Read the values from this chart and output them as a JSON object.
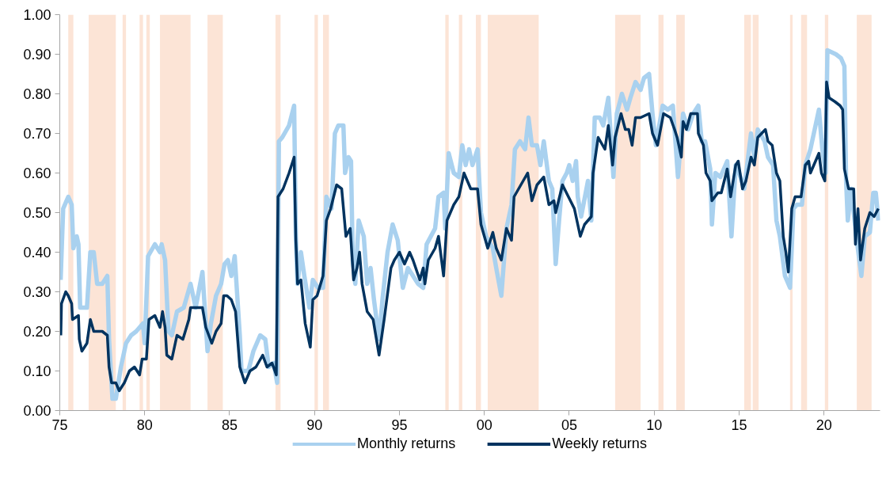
{
  "chart_data": {
    "type": "line",
    "xlim": [
      1975,
      2023.3
    ],
    "ylim": [
      0,
      1
    ],
    "xticks": [
      {
        "value": 1975,
        "label": "75"
      },
      {
        "value": 1980,
        "label": "80"
      },
      {
        "value": 1985,
        "label": "85"
      },
      {
        "value": 1990,
        "label": "90"
      },
      {
        "value": 1995,
        "label": "95"
      },
      {
        "value": 2000,
        "label": "00"
      },
      {
        "value": 2005,
        "label": "05"
      },
      {
        "value": 2010,
        "label": "10"
      },
      {
        "value": 2015,
        "label": "15"
      },
      {
        "value": 2020,
        "label": "20"
      }
    ],
    "yticks": [
      {
        "value": 0,
        "label": "0.00"
      },
      {
        "value": 0.1,
        "label": "0.10"
      },
      {
        "value": 0.2,
        "label": "0.20"
      },
      {
        "value": 0.3,
        "label": "0.30"
      },
      {
        "value": 0.4,
        "label": "0.40"
      },
      {
        "value": 0.5,
        "label": "0.50"
      },
      {
        "value": 0.6,
        "label": "0.60"
      },
      {
        "value": 0.7,
        "label": "0.70"
      },
      {
        "value": 0.8,
        "label": "0.80"
      },
      {
        "value": 0.9,
        "label": "0.90"
      },
      {
        "value": 1,
        "label": "1.00"
      }
    ],
    "grid": false,
    "legend": "bottom",
    "line_style": "solid",
    "marker": "none",
    "series": [
      {
        "name": "Monthly returns",
        "color": "#a9d1ef",
        "x": [
          1975.05,
          1975.2,
          1975.5,
          1975.7,
          1975.8,
          1976.0,
          1976.1,
          1976.2,
          1976.6,
          1976.8,
          1977.0,
          1977.2,
          1977.5,
          1977.8,
          1977.9,
          1978.1,
          1978.3,
          1978.6,
          1978.9,
          1979.2,
          1979.5,
          1979.9,
          1980.0,
          1980.2,
          1980.6,
          1980.9,
          1981.0,
          1981.2,
          1981.4,
          1981.6,
          1981.9,
          1982.3,
          1982.7,
          1983.0,
          1983.4,
          1983.7,
          1983.9,
          1984.2,
          1984.5,
          1984.7,
          1984.9,
          1985.1,
          1985.3,
          1985.6,
          1985.7,
          1986.1,
          1986.4,
          1986.8,
          1987.1,
          1987.3,
          1987.6,
          1987.8,
          1987.9,
          1988.1,
          1988.5,
          1988.8,
          1988.9,
          1989.0,
          1989.2,
          1989.4,
          1989.7,
          1989.9,
          1990.2,
          1990.5,
          1990.7,
          1991.0,
          1991.2,
          1991.4,
          1991.7,
          1991.8,
          1992.0,
          1992.15,
          1992.25,
          1992.4,
          1992.6,
          1992.9,
          1993.1,
          1993.3,
          1993.5,
          1993.8,
          1994.0,
          1994.3,
          1994.6,
          1994.9,
          1995.2,
          1995.5,
          1995.8,
          1996.1,
          1996.4,
          1996.6,
          1997.1,
          1997.3,
          1997.6,
          1997.7,
          1997.9,
          1998.2,
          1998.5,
          1998.7,
          1998.9,
          1999.1,
          1999.3,
          1999.6,
          1999.8,
          2000.1,
          2000.5,
          2000.7,
          2001.0,
          2001.3,
          2001.6,
          2001.8,
          2002.1,
          2002.4,
          2002.6,
          2002.8,
          2003.1,
          2003.3,
          2003.5,
          2003.8,
          2004.0,
          2004.2,
          2004.4,
          2004.6,
          2004.85,
          2005.0,
          2005.2,
          2005.4,
          2005.5,
          2005.7,
          2006.1,
          2006.3,
          2006.5,
          2006.8,
          2007.0,
          2007.3,
          2007.6,
          2007.8,
          2008.1,
          2008.4,
          2008.6,
          2008.9,
          2009.2,
          2009.4,
          2009.7,
          2009.9,
          2010.1,
          2010.5,
          2010.8,
          2011.1,
          2011.4,
          2011.7,
          2012.0,
          2012.3,
          2012.6,
          2012.8,
          2013.0,
          2013.3,
          2013.4,
          2013.6,
          2013.9,
          2014.3,
          2014.55,
          2014.8,
          2015.0,
          2015.3,
          2015.7,
          2015.9,
          2016.1,
          2016.5,
          2016.7,
          2017.0,
          2017.2,
          2017.4,
          2017.7,
          2018.0,
          2018.2,
          2018.4,
          2018.7,
          2018.9,
          2019.2,
          2019.5,
          2019.7,
          2019.9,
          2020.1,
          2020.2,
          2020.7,
          2021.0,
          2021.2,
          2021.3,
          2021.4,
          2021.6,
          2021.9,
          2022.2,
          2022.4,
          2022.7,
          2022.9,
          2023.05,
          2023.2
        ],
        "values": [
          0.33,
          0.51,
          0.54,
          0.52,
          0.41,
          0.44,
          0.42,
          0.26,
          0.26,
          0.4,
          0.4,
          0.32,
          0.32,
          0.34,
          0.18,
          0.03,
          0.03,
          0.11,
          0.17,
          0.19,
          0.2,
          0.22,
          0.17,
          0.39,
          0.42,
          0.4,
          0.42,
          0.38,
          0.2,
          0.19,
          0.25,
          0.26,
          0.32,
          0.26,
          0.35,
          0.15,
          0.22,
          0.29,
          0.32,
          0.37,
          0.38,
          0.34,
          0.39,
          0.19,
          0.1,
          0.1,
          0.15,
          0.19,
          0.18,
          0.11,
          0.12,
          0.07,
          0.68,
          0.69,
          0.72,
          0.77,
          0.44,
          0.32,
          0.4,
          0.34,
          0.26,
          0.33,
          0.31,
          0.31,
          0.54,
          0.51,
          0.7,
          0.72,
          0.72,
          0.6,
          0.64,
          0.63,
          0.38,
          0.32,
          0.48,
          0.44,
          0.32,
          0.36,
          0.28,
          0.18,
          0.28,
          0.4,
          0.47,
          0.43,
          0.31,
          0.36,
          0.34,
          0.32,
          0.31,
          0.42,
          0.46,
          0.54,
          0.55,
          0.46,
          0.65,
          0.6,
          0.59,
          0.67,
          0.62,
          0.66,
          0.62,
          0.66,
          0.5,
          0.44,
          0.41,
          0.36,
          0.29,
          0.46,
          0.52,
          0.66,
          0.68,
          0.66,
          0.74,
          0.67,
          0.67,
          0.62,
          0.68,
          0.58,
          0.56,
          0.37,
          0.48,
          0.58,
          0.6,
          0.62,
          0.58,
          0.63,
          0.54,
          0.49,
          0.58,
          0.48,
          0.74,
          0.74,
          0.72,
          0.79,
          0.59,
          0.75,
          0.8,
          0.76,
          0.79,
          0.83,
          0.81,
          0.84,
          0.85,
          0.75,
          0.67,
          0.77,
          0.76,
          0.77,
          0.59,
          0.75,
          0.71,
          0.75,
          0.77,
          0.68,
          0.68,
          0.61,
          0.47,
          0.6,
          0.59,
          0.63,
          0.44,
          0.62,
          0.6,
          0.56,
          0.7,
          0.64,
          0.71,
          0.68,
          0.64,
          0.62,
          0.48,
          0.44,
          0.34,
          0.31,
          0.51,
          0.52,
          0.52,
          0.62,
          0.66,
          0.72,
          0.76,
          0.66,
          0.6,
          0.91,
          0.9,
          0.89,
          0.87,
          0.58,
          0.48,
          0.56,
          0.44,
          0.34,
          0.44,
          0.45,
          0.55,
          0.55,
          0.48
        ]
      },
      {
        "name": "Weekly returns",
        "color": "#00335f",
        "x": [
          1975.06,
          1975.1,
          1975.35,
          1975.5,
          1975.7,
          1975.75,
          1976.1,
          1976.15,
          1976.3,
          1976.6,
          1976.8,
          1977.0,
          1977.5,
          1977.8,
          1977.9,
          1978.05,
          1978.3,
          1978.5,
          1978.8,
          1979.1,
          1979.4,
          1979.7,
          1979.85,
          1980.1,
          1980.25,
          1980.6,
          1980.9,
          1981.05,
          1981.2,
          1981.3,
          1981.6,
          1981.9,
          1982.25,
          1982.6,
          1982.7,
          1983.05,
          1983.4,
          1983.6,
          1983.95,
          1984.2,
          1984.5,
          1984.65,
          1984.85,
          1985.1,
          1985.35,
          1985.6,
          1985.9,
          1986.2,
          1986.55,
          1986.95,
          1987.2,
          1987.5,
          1987.75,
          1987.85,
          1988.15,
          1988.5,
          1988.8,
          1988.9,
          1989.0,
          1989.2,
          1989.45,
          1989.75,
          1989.9,
          1990.15,
          1990.5,
          1990.7,
          1990.95,
          1991.3,
          1991.6,
          1991.85,
          1992.1,
          1992.3,
          1992.5,
          1992.65,
          1992.8,
          1993.1,
          1993.45,
          1993.8,
          1994.1,
          1994.5,
          1994.7,
          1995.0,
          1995.3,
          1995.6,
          1995.8,
          1996.2,
          1996.4,
          1996.5,
          1996.7,
          1997.1,
          1997.3,
          1997.6,
          1997.8,
          1998.2,
          1998.5,
          1998.8,
          1999.2,
          1999.6,
          1999.8,
          2000.2,
          2000.5,
          2000.7,
          2001.0,
          2001.3,
          2001.6,
          2001.75,
          2002.15,
          2002.55,
          2002.8,
          2003.1,
          2003.5,
          2003.8,
          2004.1,
          2004.2,
          2004.6,
          2004.95,
          2005.3,
          2005.65,
          2005.9,
          2006.3,
          2006.4,
          2006.7,
          2007.1,
          2007.3,
          2007.55,
          2007.7,
          2008.05,
          2008.3,
          2008.5,
          2008.7,
          2008.9,
          2009.2,
          2009.7,
          2009.9,
          2010.2,
          2010.55,
          2010.95,
          2011.2,
          2011.35,
          2011.6,
          2011.7,
          2011.9,
          2012.15,
          2012.55,
          2012.6,
          2012.9,
          2013.05,
          2013.3,
          2013.4,
          2013.75,
          2013.95,
          2014.3,
          2014.5,
          2014.8,
          2014.95,
          2015.2,
          2015.4,
          2015.7,
          2015.9,
          2016.1,
          2016.55,
          2016.7,
          2016.95,
          2017.2,
          2017.4,
          2017.6,
          2017.75,
          2017.9,
          2018.1,
          2018.3,
          2018.65,
          2018.9,
          2019.1,
          2019.2,
          2019.7,
          2019.85,
          2020.05,
          2020.15,
          2020.3,
          2020.65,
          2020.95,
          2021.1,
          2021.2,
          2021.45,
          2021.75,
          2021.85,
          2022.0,
          2022.15,
          2022.4,
          2022.7,
          2022.95,
          2023.2
        ],
        "values": [
          0.19,
          0.27,
          0.3,
          0.29,
          0.27,
          0.23,
          0.24,
          0.18,
          0.15,
          0.17,
          0.23,
          0.2,
          0.2,
          0.19,
          0.11,
          0.07,
          0.07,
          0.05,
          0.07,
          0.1,
          0.11,
          0.09,
          0.13,
          0.13,
          0.23,
          0.24,
          0.21,
          0.25,
          0.21,
          0.14,
          0.13,
          0.19,
          0.18,
          0.23,
          0.26,
          0.26,
          0.26,
          0.21,
          0.17,
          0.2,
          0.22,
          0.29,
          0.29,
          0.28,
          0.25,
          0.11,
          0.07,
          0.1,
          0.11,
          0.14,
          0.11,
          0.12,
          0.09,
          0.54,
          0.56,
          0.6,
          0.64,
          0.43,
          0.32,
          0.33,
          0.22,
          0.16,
          0.28,
          0.29,
          0.34,
          0.48,
          0.51,
          0.57,
          0.56,
          0.44,
          0.46,
          0.33,
          0.36,
          0.4,
          0.32,
          0.25,
          0.23,
          0.14,
          0.23,
          0.36,
          0.38,
          0.4,
          0.37,
          0.4,
          0.38,
          0.33,
          0.36,
          0.32,
          0.38,
          0.41,
          0.44,
          0.34,
          0.48,
          0.52,
          0.54,
          0.6,
          0.56,
          0.56,
          0.47,
          0.41,
          0.45,
          0.41,
          0.38,
          0.46,
          0.43,
          0.54,
          0.57,
          0.6,
          0.53,
          0.57,
          0.59,
          0.52,
          0.53,
          0.5,
          0.57,
          0.54,
          0.51,
          0.44,
          0.47,
          0.49,
          0.6,
          0.69,
          0.66,
          0.72,
          0.62,
          0.69,
          0.75,
          0.71,
          0.71,
          0.67,
          0.74,
          0.74,
          0.75,
          0.7,
          0.67,
          0.75,
          0.74,
          0.71,
          0.69,
          0.64,
          0.73,
          0.71,
          0.75,
          0.75,
          0.7,
          0.67,
          0.6,
          0.58,
          0.53,
          0.55,
          0.55,
          0.61,
          0.54,
          0.62,
          0.63,
          0.56,
          0.58,
          0.64,
          0.62,
          0.69,
          0.71,
          0.68,
          0.67,
          0.6,
          0.58,
          0.44,
          0.4,
          0.35,
          0.51,
          0.54,
          0.54,
          0.62,
          0.63,
          0.6,
          0.65,
          0.6,
          0.58,
          0.83,
          0.79,
          0.78,
          0.77,
          0.76,
          0.61,
          0.56,
          0.56,
          0.42,
          0.51,
          0.38,
          0.46,
          0.5,
          0.49,
          0.51
        ]
      }
    ],
    "bands": [
      {
        "axis": "x",
        "from": 1975.5,
        "to": 1975.8,
        "color": "#fce4d6"
      },
      {
        "axis": "x",
        "from": 1976.7,
        "to": 1978.3,
        "color": "#fce4d6"
      },
      {
        "axis": "x",
        "from": 1978.7,
        "to": 1978.9,
        "color": "#fce4d6"
      },
      {
        "axis": "x",
        "from": 1979.7,
        "to": 1979.9,
        "color": "#fce4d6"
      },
      {
        "axis": "x",
        "from": 1980.1,
        "to": 1980.3,
        "color": "#fce4d6"
      },
      {
        "axis": "x",
        "from": 1980.9,
        "to": 1982.7,
        "color": "#fce4d6"
      },
      {
        "axis": "x",
        "from": 1983.7,
        "to": 1984.6,
        "color": "#fce4d6"
      },
      {
        "axis": "x",
        "from": 1987.7,
        "to": 1988.0,
        "color": "#fce4d6"
      },
      {
        "axis": "x",
        "from": 1990.0,
        "to": 1990.2,
        "color": "#fce4d6"
      },
      {
        "axis": "x",
        "from": 1990.5,
        "to": 1990.85,
        "color": "#fce4d6"
      },
      {
        "axis": "x",
        "from": 1997.7,
        "to": 1997.9,
        "color": "#fce4d6"
      },
      {
        "axis": "x",
        "from": 1998.5,
        "to": 1998.7,
        "color": "#fce4d6"
      },
      {
        "axis": "x",
        "from": 1999.5,
        "to": 1999.8,
        "color": "#fce4d6"
      },
      {
        "axis": "x",
        "from": 2000.2,
        "to": 2003.2,
        "color": "#fce4d6"
      },
      {
        "axis": "x",
        "from": 2007.7,
        "to": 2009.2,
        "color": "#fce4d6"
      },
      {
        "axis": "x",
        "from": 2010.25,
        "to": 2010.55,
        "color": "#fce4d6"
      },
      {
        "axis": "x",
        "from": 2011.3,
        "to": 2011.8,
        "color": "#fce4d6"
      },
      {
        "axis": "x",
        "from": 2015.3,
        "to": 2015.7,
        "color": "#fce4d6"
      },
      {
        "axis": "x",
        "from": 2015.8,
        "to": 2016.15,
        "color": "#fce4d6"
      },
      {
        "axis": "x",
        "from": 2018.0,
        "to": 2018.15,
        "color": "#fce4d6"
      },
      {
        "axis": "x",
        "from": 2018.65,
        "to": 2019.0,
        "color": "#fce4d6"
      },
      {
        "axis": "x",
        "from": 2020.05,
        "to": 2020.25,
        "color": "#fce4d6"
      },
      {
        "axis": "x",
        "from": 2021.93,
        "to": 2022.8,
        "color": "#fce4d6"
      }
    ]
  }
}
